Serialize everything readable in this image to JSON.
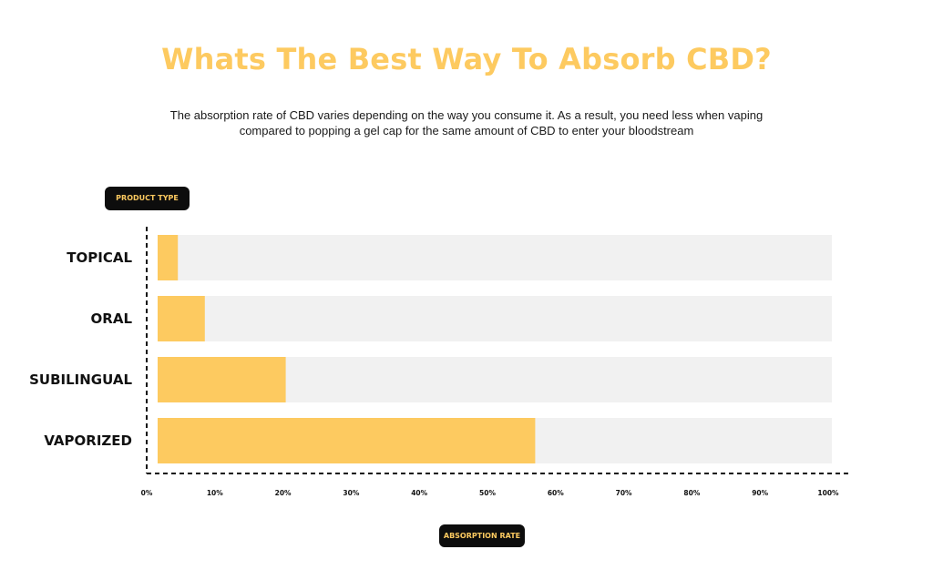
{
  "header": {
    "title": "Whats The Best Way To Absorb CBD?",
    "subtitle": "The absorption rate of CBD varies depending on the way you consume it. As a result, you need less when vaping compared to popping a gel cap for the same amount of CBD to enter your bloodstream"
  },
  "axis_titles": {
    "y": "PRODUCT TYPE",
    "x": "ABSORPTION RATE"
  },
  "colors": {
    "title": "#fdca60",
    "bar": "#fdca60",
    "track": "#f1f1f1",
    "pill_bg": "#0d0d0d",
    "axis": "#111111"
  },
  "chart_data": {
    "type": "bar",
    "orientation": "horizontal",
    "title": "Whats The Best Way To Absorb CBD?",
    "xlabel": "ABSORPTION RATE",
    "ylabel": "PRODUCT TYPE",
    "categories": [
      "TOPICAL",
      "ORAL",
      "SUBILINGUAL",
      "VAPORIZED"
    ],
    "values": [
      3,
      7,
      19,
      56
    ],
    "xlim": [
      0,
      100
    ],
    "xticks": [
      "0%",
      "10%",
      "20%",
      "30%",
      "40%",
      "50%",
      "60%",
      "70%",
      "80%",
      "90%",
      "100%"
    ],
    "grid": false,
    "legend": "none"
  }
}
